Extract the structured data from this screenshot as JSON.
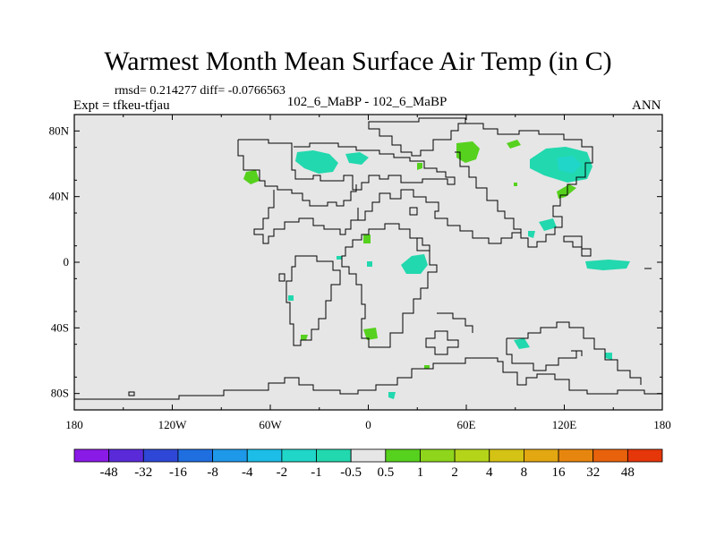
{
  "title": "Warmest Month Mean Surface Air Temp (in C)",
  "stats": "rmsd= 0.214277 diff= -0.0766563",
  "left_label": "Expt = tfkeu-tfjau",
  "center_label": "102_6_MaBP - 102_6_MaBP",
  "right_label": "ANN",
  "map": {
    "background_color": "#e6e6e6",
    "x_ticks": [
      "180",
      "120W",
      "60W",
      "0",
      "60E",
      "120E",
      "180"
    ],
    "y_ticks": [
      "80N",
      "40N",
      "0",
      "40S",
      "80S"
    ]
  },
  "colorbar": {
    "labels": [
      "-48",
      "-32",
      "-16",
      "-8",
      "-4",
      "-2",
      "-1",
      "-0.5",
      "0.5",
      "1",
      "2",
      "4",
      "8",
      "16",
      "32",
      "48"
    ],
    "colors": [
      "#8a1ae6",
      "#5a2ad8",
      "#2f47d6",
      "#1f6fe0",
      "#1e98e8",
      "#1cbde6",
      "#20d6c8",
      "#22d8ae",
      "#e6e6e6",
      "#56d11e",
      "#8ed51c",
      "#b4d41a",
      "#d4c214",
      "#e3a712",
      "#e7860f",
      "#e8620c",
      "#e5370a"
    ]
  },
  "anomaly_patches": [
    {
      "color": "#22d8ae",
      "desc": "north america arctic"
    },
    {
      "color": "#56d11e",
      "desc": "greenland west"
    },
    {
      "color": "#22d8ae",
      "desc": "siberia"
    },
    {
      "color": "#20d6c8",
      "desc": "siberia core"
    },
    {
      "color": "#56d11e",
      "desc": "europe north"
    },
    {
      "color": "#22d8ae",
      "desc": "africa east"
    }
  ]
}
